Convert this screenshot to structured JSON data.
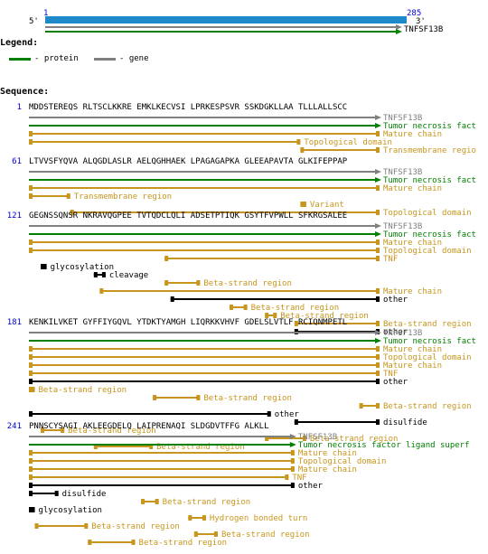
{
  "overview": {
    "start": "1",
    "end": "285",
    "five_prime": "5'",
    "three_prime": "3'",
    "gene_label": "TNFSF13B"
  },
  "legend": {
    "title": "Legend:",
    "items": [
      {
        "label": "- protein",
        "color": "#008000"
      },
      {
        "label": "- gene",
        "color": "#808080"
      }
    ]
  },
  "sequence_title": "Sequence:",
  "colors": {
    "gene": "#808080",
    "protein": "#008000",
    "feature": "#c8961e",
    "site": "#000000",
    "bar": "#1e88c8",
    "number": "#0000cc"
  },
  "blocks": [
    {
      "start": "1",
      "sequence": "MDDSTEREQS RLTSCLKKRE EMKLKECVSI LPRKESPSVR SSKDGKLLAA TLLLALLSCC",
      "tracks": [
        {
          "type": "gene",
          "from": 1,
          "to": 60,
          "arrow": true,
          "label": "TNFSF13B"
        },
        {
          "type": "protein",
          "from": 1,
          "to": 60,
          "arrow": true,
          "label": "Tumor necrosis fact"
        },
        {
          "type": "feature",
          "from": 1,
          "to": 60,
          "label": "Mature chain"
        },
        {
          "type": "feature",
          "from": 1,
          "to": 46,
          "label": "Topological domain"
        },
        {
          "type": "feature",
          "from": 47,
          "to": 60,
          "label": "Transmembrane regio"
        }
      ]
    },
    {
      "start": "61",
      "sequence": "LTVVSFYQVA ALQGDLASLR AELQGHHAEK LPAGAGAPKA GLEEAPAVTA GLKIFEPPAP",
      "tracks": [
        {
          "type": "gene",
          "from": 1,
          "to": 60,
          "arrow": true,
          "label": "TNFSF13B"
        },
        {
          "type": "protein",
          "from": 1,
          "to": 60,
          "arrow": true,
          "label": "Tumor necrosis fact"
        },
        {
          "type": "feature",
          "from": 1,
          "to": 60,
          "label": "Mature chain"
        },
        {
          "type": "feature",
          "from": 1,
          "to": 7,
          "label": "Transmembrane region"
        },
        {
          "type": "feature",
          "from": 47,
          "to": 47,
          "label": "Variant"
        },
        {
          "type": "feature",
          "from": 8,
          "to": 60,
          "label": "Topological domain"
        }
      ]
    },
    {
      "start": "121",
      "sequence": "GEGNSSQNSR NKRAVQGPEE TVTQDCLQLI ADSETPTIQK GSYTFVPWLL SFKRGSALEE",
      "tracks": [
        {
          "type": "gene",
          "from": 1,
          "to": 60,
          "arrow": true,
          "label": "TNFSF13B"
        },
        {
          "type": "protein",
          "from": 1,
          "to": 60,
          "arrow": true,
          "label": "Tumor necrosis fact"
        },
        {
          "type": "feature",
          "from": 1,
          "to": 60,
          "label": "Mature chain"
        },
        {
          "type": "feature",
          "from": 1,
          "to": 60,
          "label": "Topological domain"
        },
        {
          "type": "feature",
          "from": 24,
          "to": 60,
          "label": "TNF"
        },
        {
          "type": "site",
          "from": 3,
          "to": 3,
          "label": "glycosylation"
        },
        {
          "type": "site",
          "from": 12,
          "to": 13,
          "label": "cleavage"
        },
        {
          "type": "feature",
          "from": 24,
          "to": 29,
          "label": "Beta-strand region"
        },
        {
          "type": "feature",
          "from": 13,
          "to": 60,
          "label": "Mature chain"
        },
        {
          "type": "site",
          "from": 25,
          "to": 60,
          "label": "other"
        },
        {
          "type": "feature",
          "from": 35,
          "to": 37,
          "label": "Beta-strand region"
        },
        {
          "type": "feature",
          "from": 41,
          "to": 42,
          "label": "Beta-strand region"
        },
        {
          "type": "feature",
          "from": 46,
          "to": 60,
          "label": "Beta-strand region"
        },
        {
          "type": "site",
          "from": 46,
          "to": 60,
          "label": "other"
        }
      ]
    },
    {
      "start": "181",
      "sequence": "KENKILVKET GYFFIYGQVL YTDKTYAMGH LIQRKKVHVF GDELSLVTLF RCIQNMPETL",
      "tracks": [
        {
          "type": "gene",
          "from": 1,
          "to": 60,
          "arrow": true,
          "label": "TNFSF13B"
        },
        {
          "type": "protein",
          "from": 1,
          "to": 60,
          "arrow": true,
          "label": "Tumor necrosis fact"
        },
        {
          "type": "feature",
          "from": 1,
          "to": 60,
          "label": "Mature chain"
        },
        {
          "type": "feature",
          "from": 1,
          "to": 60,
          "label": "Topological domain"
        },
        {
          "type": "feature",
          "from": 1,
          "to": 60,
          "label": "Mature chain"
        },
        {
          "type": "feature",
          "from": 1,
          "to": 60,
          "label": "TNF"
        },
        {
          "type": "site",
          "from": 1,
          "to": 60,
          "label": "other"
        },
        {
          "type": "feature",
          "from": 1,
          "to": 1,
          "label": "Beta-strand region"
        },
        {
          "type": "feature",
          "from": 22,
          "to": 29,
          "label": "Beta-strand region"
        },
        {
          "type": "feature",
          "from": 57,
          "to": 60,
          "label": "Beta-strand region"
        },
        {
          "type": "site",
          "from": 1,
          "to": 41,
          "label": "other"
        },
        {
          "type": "site",
          "from": 46,
          "to": 60,
          "label": "disulfide"
        },
        {
          "type": "feature",
          "from": 3,
          "to": 6,
          "label": "Beta-strand region"
        },
        {
          "type": "feature",
          "from": 41,
          "to": 47,
          "label": "Beta-strand region"
        },
        {
          "type": "feature",
          "from": 12,
          "to": 21,
          "label": "Beta-strand region"
        }
      ]
    },
    {
      "start": "241",
      "sequence": "PNNSCYSAGI AKLEEGDELQ LAIPRENAQI SLDGDVTFFG ALKLL",
      "tracks": [
        {
          "type": "gene",
          "from": 1,
          "to": 45,
          "arrow": true,
          "label": "TNFSF13B"
        },
        {
          "type": "protein",
          "from": 1,
          "to": 45,
          "arrow": true,
          "label": "Tumor necrosis factor ligand superf"
        },
        {
          "type": "feature",
          "from": 1,
          "to": 45,
          "label": "Mature chain"
        },
        {
          "type": "feature",
          "from": 1,
          "to": 45,
          "label": "Topological domain"
        },
        {
          "type": "feature",
          "from": 1,
          "to": 45,
          "label": "Mature chain"
        },
        {
          "type": "feature",
          "from": 1,
          "to": 44,
          "label": "TNF"
        },
        {
          "type": "site",
          "from": 1,
          "to": 45,
          "label": "other"
        },
        {
          "type": "site",
          "from": 1,
          "to": 5,
          "label": "disulfide"
        },
        {
          "type": "feature",
          "from": 20,
          "to": 22,
          "label": "Beta-strand region"
        },
        {
          "type": "site",
          "from": 1,
          "to": 1,
          "label": "glycosylation"
        },
        {
          "type": "feature",
          "from": 28,
          "to": 30,
          "label": "Hydrogen bonded turn"
        },
        {
          "type": "feature",
          "from": 2,
          "to": 10,
          "label": "Beta-strand region"
        },
        {
          "type": "feature",
          "from": 29,
          "to": 32,
          "label": "Beta-strand region"
        },
        {
          "type": "feature",
          "from": 11,
          "to": 18,
          "label": "Beta-strand region"
        }
      ]
    }
  ]
}
